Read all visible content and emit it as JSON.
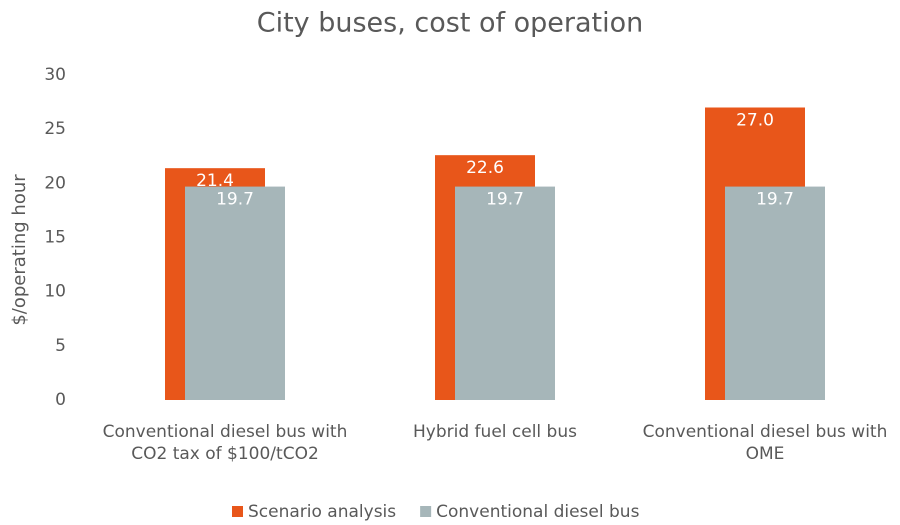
{
  "chart_data": {
    "type": "bar",
    "title": "City buses, cost of operation",
    "y_label": "$/operating hour",
    "categories": [
      "Conventional diesel bus with CO2 tax of $100/tCO2",
      "Hybrid fuel cell bus",
      "Conventional diesel bus with OME"
    ],
    "series": [
      {
        "name": "Scenario analysis",
        "color": "#e8561a",
        "values": [
          21.4,
          22.6,
          27
        ],
        "value_labels": [
          "21.4",
          "22.6",
          "27.0"
        ]
      },
      {
        "name": "Conventional diesel bus",
        "color": "#a6b6b9",
        "values": [
          19.7,
          19.7,
          19.7
        ]
      }
    ],
    "ylim": [
      0,
      30
    ],
    "yticks": [
      0,
      5,
      10,
      15,
      20,
      25,
      30
    ],
    "grid": false,
    "legend": "bottom"
  }
}
